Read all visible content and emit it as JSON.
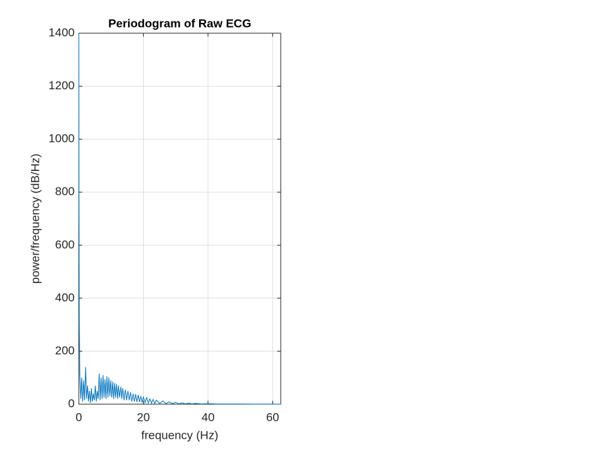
{
  "chart_data": {
    "type": "line",
    "title": "Periodogram of Raw ECG",
    "xlabel": "frequency (Hz)",
    "ylabel": "power/frequency (dB/Hz)",
    "x": [
      0,
      0.05,
      0.15,
      0.3,
      0.6,
      0.9,
      1.2,
      1.5,
      1.8,
      2.1,
      2.4,
      2.7,
      3.0,
      3.3,
      3.6,
      3.9,
      4.2,
      4.5,
      4.8,
      5.1,
      5.4,
      5.7,
      6.0,
      6.3,
      6.6,
      6.9,
      7.2,
      7.5,
      7.8,
      8.1,
      8.4,
      8.7,
      9.0,
      9.3,
      9.6,
      9.9,
      10.2,
      10.5,
      10.8,
      11.1,
      11.4,
      11.7,
      12.0,
      12.3,
      12.6,
      13,
      13.3,
      13.6,
      14,
      14.4,
      14.8,
      15.2,
      15.6,
      16,
      16.4,
      16.8,
      17.2,
      17.6,
      18,
      18.4,
      18.8,
      19.2,
      19.6,
      20,
      20.5,
      21,
      21.5,
      22,
      22.5,
      23,
      23.5,
      24,
      25,
      26,
      27,
      28,
      29,
      30,
      31,
      32,
      33,
      34,
      35,
      36,
      38,
      40,
      42,
      45,
      50,
      55,
      60,
      62.5
    ],
    "values": [
      1400,
      800,
      300,
      120,
      20,
      100,
      10,
      90,
      15,
      140,
      20,
      70,
      10,
      50,
      5,
      60,
      10,
      40,
      15,
      70,
      10,
      50,
      20,
      115,
      15,
      100,
      20,
      110,
      25,
      95,
      20,
      105,
      25,
      100,
      30,
      90,
      25,
      85,
      20,
      80,
      25,
      75,
      20,
      70,
      25,
      65,
      20,
      60,
      15,
      55,
      15,
      50,
      15,
      45,
      10,
      40,
      10,
      38,
      8,
      35,
      8,
      30,
      6,
      28,
      6,
      25,
      5,
      20,
      4,
      18,
      3,
      15,
      3,
      12,
      2,
      9,
      2,
      7,
      1,
      5,
      1,
      4,
      1,
      3,
      1,
      2,
      1,
      0.8,
      0.5,
      0.3,
      0.2,
      0.1
    ],
    "color": "#0072bd",
    "xlim": [
      0,
      62.5
    ],
    "xticks": [
      0,
      20,
      40,
      60
    ],
    "ylim": [
      0,
      1400
    ],
    "yticks": [
      0,
      200,
      400,
      600,
      800,
      1000,
      1200,
      1400
    ],
    "grid": true
  }
}
